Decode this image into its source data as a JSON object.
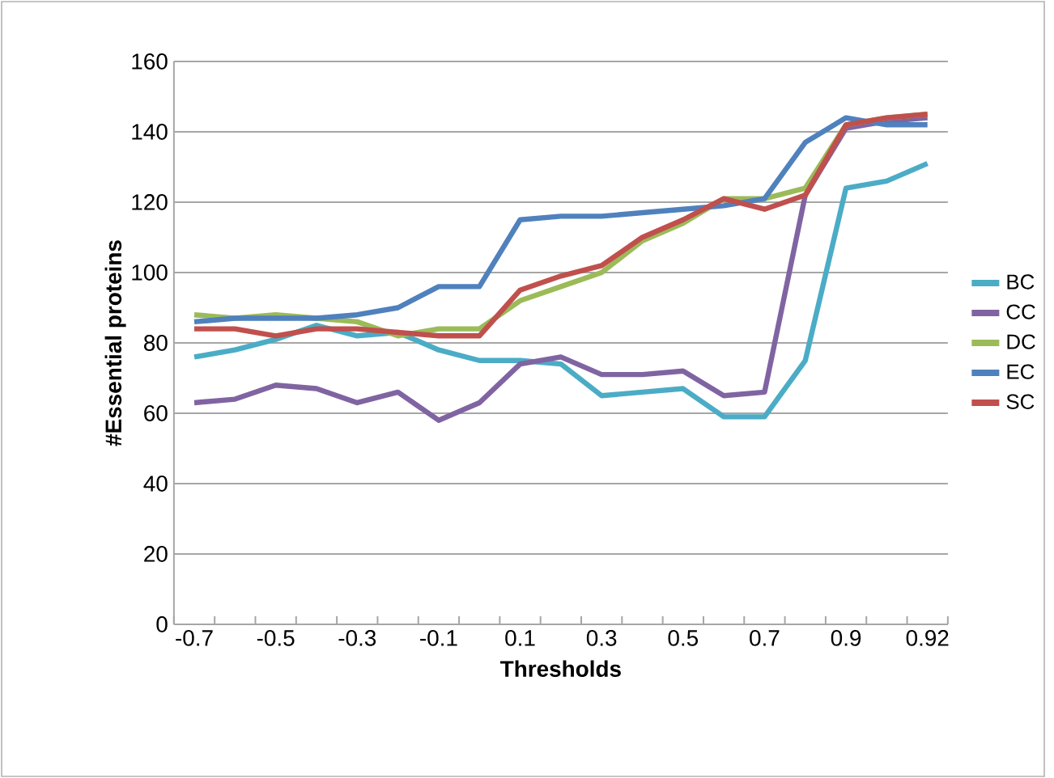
{
  "chart_data": {
    "type": "line",
    "xlabel": "Thresholds",
    "ylabel": "#Essential proteins",
    "categories": [
      "-0.7",
      null,
      "-0.5",
      null,
      "-0.3",
      null,
      "-0.1",
      null,
      "0.1",
      null,
      "0.3",
      null,
      "0.5",
      null,
      "0.7",
      null,
      "0.9",
      null,
      "0.92"
    ],
    "series": [
      {
        "name": "BC",
        "color": "#4bacc6",
        "values": [
          76,
          78,
          81,
          85,
          82,
          83,
          78,
          75,
          75,
          74,
          65,
          66,
          67,
          59,
          59,
          75,
          124,
          126,
          131
        ]
      },
      {
        "name": "CC",
        "color": "#8064a2",
        "values": [
          63,
          64,
          68,
          67,
          63,
          66,
          58,
          63,
          74,
          76,
          71,
          71,
          72,
          65,
          66,
          122,
          141,
          143,
          144
        ]
      },
      {
        "name": "DC",
        "color": "#9bbb59",
        "values": [
          88,
          87,
          88,
          87,
          86,
          82,
          84,
          84,
          92,
          96,
          100,
          109,
          114,
          121,
          121,
          124,
          142,
          144,
          145
        ]
      },
      {
        "name": "EC",
        "color": "#4f81bd",
        "values": [
          86,
          87,
          87,
          87,
          88,
          90,
          96,
          96,
          115,
          116,
          116,
          117,
          118,
          119,
          121,
          137,
          144,
          142,
          142
        ]
      },
      {
        "name": "SC",
        "color": "#c0504d",
        "values": [
          84,
          84,
          82,
          84,
          84,
          83,
          82,
          82,
          95,
          99,
          102,
          110,
          115,
          121,
          118,
          122,
          142,
          144,
          145
        ]
      }
    ],
    "ylim": [
      0,
      160
    ],
    "yticks": [
      0,
      20,
      40,
      60,
      80,
      100,
      120,
      140,
      160
    ],
    "grid": "y",
    "legend": "right",
    "marker": "none",
    "line_style": "solid"
  }
}
